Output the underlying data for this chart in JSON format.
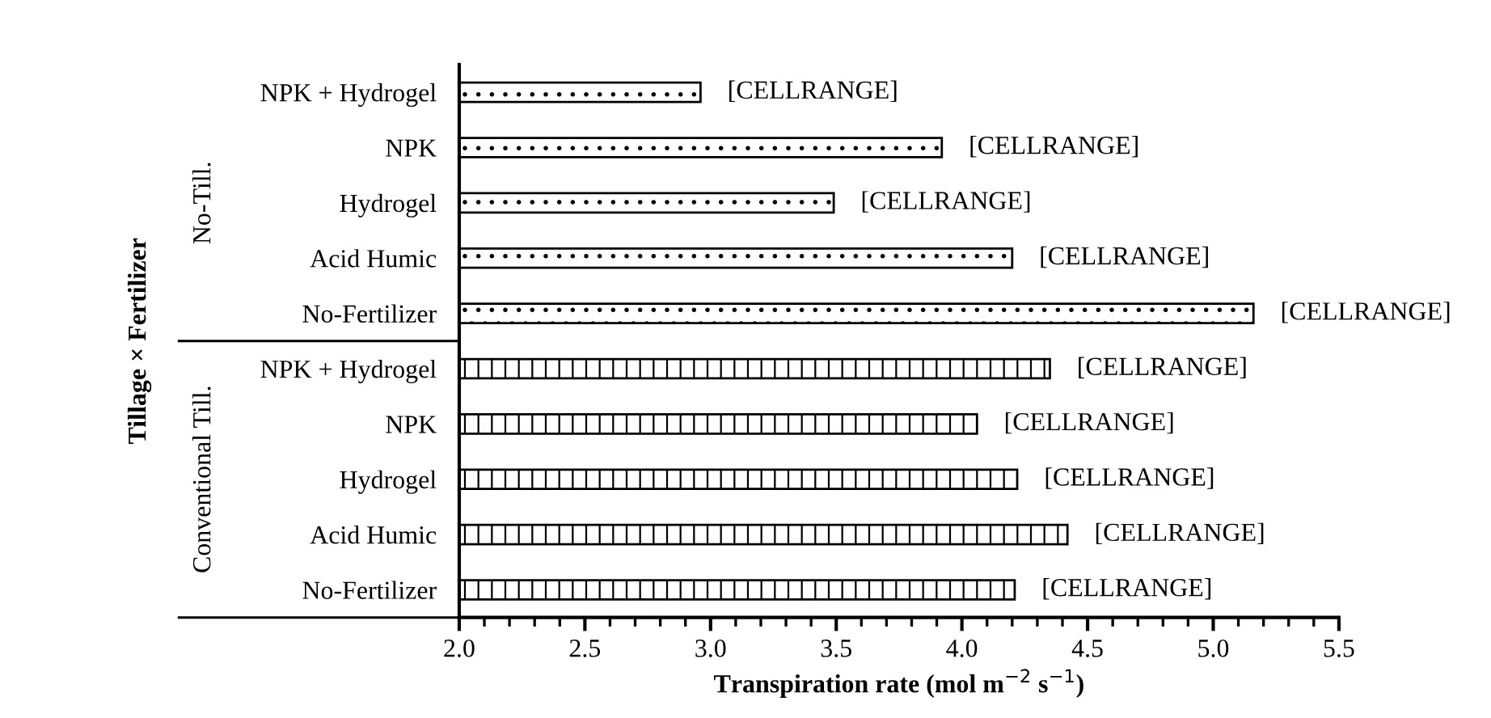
{
  "chart_data": {
    "type": "bar",
    "orientation": "horizontal",
    "categories": [
      "NPK + Hydrogel",
      "NPK",
      "Hydrogel",
      "Acid Humic",
      "No-Fertilizer",
      "NPK + Hydrogel",
      "NPK",
      "Hydrogel",
      "Acid Humic",
      "No-Fertilizer"
    ],
    "series": [
      {
        "color": "#000000",
        "values": [
          2.96,
          3.92,
          3.49,
          4.2,
          5.16,
          null,
          null,
          null,
          null,
          null
        ],
        "value_labels": [
          "[CELLRANGE]",
          "[CELLRANGE]",
          "[CELLRANGE]",
          "[CELLRANGE]",
          "[CELLRANGE]",
          null,
          null,
          null,
          null,
          null
        ]
      },
      {
        "color": "#000000",
        "values": [
          null,
          null,
          null,
          null,
          null,
          4.35,
          4.06,
          4.22,
          4.42,
          4.21
        ],
        "value_labels": [
          null,
          null,
          null,
          null,
          null,
          "[CELLRANGE]",
          "[CELLRANGE]",
          "[CELLRANGE]",
          "[CELLRANGE]",
          "[CELLRANGE]"
        ]
      }
    ],
    "xlabel": "Transpiration rate (mol m$^{−2}$ s$^{−1}$)",
    "ylabel": "Tillage × Fertilizer",
    "annotations": [
      "No-Till.",
      "Conventional Till."
    ],
    "xlim": [
      2.0,
      5.5
    ],
    "xticks": [
      {
        "value": 2.0,
        "label": "2.0"
      },
      {
        "value": 2.5,
        "label": "2.5"
      },
      {
        "value": 3.0,
        "label": "3.0"
      },
      {
        "value": 3.5,
        "label": "3.5"
      },
      {
        "value": 4.0,
        "label": "4.0"
      },
      {
        "value": 4.5,
        "label": "4.5"
      },
      {
        "value": 5.0,
        "label": "5.0"
      },
      {
        "value": 5.5,
        "label": "5.5"
      }
    ],
    "grid": false,
    "legend": false
  }
}
